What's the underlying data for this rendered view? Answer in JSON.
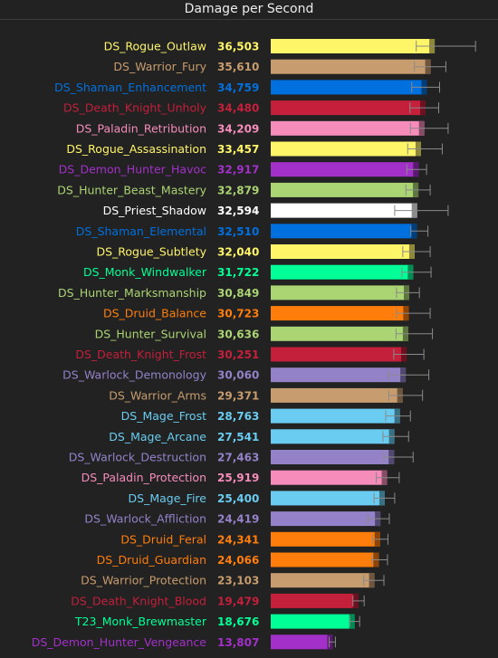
{
  "chart_data": {
    "type": "bar",
    "orientation": "horizontal",
    "title": "Damage per Second",
    "xlabel": "",
    "ylabel": "",
    "xlim": [
      0,
      37000
    ],
    "grid": false,
    "legend": "none",
    "categories": [
      "DS_Rogue_Outlaw",
      "DS_Warrior_Fury",
      "DS_Shaman_Enhancement",
      "DS_Death_Knight_Unholy",
      "DS_Paladin_Retribution",
      "DS_Rogue_Assassination",
      "DS_Demon_Hunter_Havoc",
      "DS_Hunter_Beast_Mastery",
      "DS_Priest_Shadow",
      "DS_Shaman_Elemental",
      "DS_Rogue_Subtlety",
      "DS_Monk_Windwalker",
      "DS_Hunter_Marksmanship",
      "DS_Druid_Balance",
      "DS_Hunter_Survival",
      "DS_Death_Knight_Frost",
      "DS_Warlock_Demonology",
      "DS_Warrior_Arms",
      "DS_Mage_Frost",
      "DS_Mage_Arcane",
      "DS_Warlock_Destruction",
      "DS_Paladin_Protection",
      "DS_Mage_Fire",
      "DS_Warlock_Affliction",
      "DS_Druid_Feral",
      "DS_Druid_Guardian",
      "DS_Warrior_Protection",
      "DS_Death_Knight_Blood",
      "T23_Monk_Brewmaster",
      "DS_Demon_Hunter_Vengeance"
    ],
    "values": [
      36503,
      35610,
      34759,
      34480,
      34209,
      33457,
      32917,
      32879,
      32594,
      32510,
      32040,
      31722,
      30849,
      30723,
      30636,
      30251,
      30060,
      29371,
      28763,
      27541,
      27463,
      25919,
      25400,
      24419,
      24341,
      24066,
      23103,
      19479,
      18676,
      13807
    ],
    "value_labels": [
      "36,503",
      "35,610",
      "34,759",
      "34,480",
      "34,209",
      "33,457",
      "32,917",
      "32,879",
      "32,594",
      "32,510",
      "32,040",
      "31,722",
      "30,849",
      "30,723",
      "30,636",
      "30,251",
      "30,060",
      "29,371",
      "28,763",
      "27,541",
      "27,463",
      "25,919",
      "25,400",
      "24,419",
      "24,341",
      "24,066",
      "23,103",
      "19,479",
      "18,676",
      "13,807"
    ],
    "range_low": [
      32400,
      32000,
      31400,
      31000,
      31100,
      30500,
      30300,
      30100,
      27600,
      31200,
      29400,
      29200,
      28000,
      28000,
      27900,
      27400,
      26200,
      26300,
      25600,
      25000,
      25200,
      23500,
      23000,
      21600,
      22700,
      22500,
      20700,
      18300,
      17600,
      13000
    ],
    "range_high": [
      45600,
      39000,
      37600,
      37400,
      39500,
      38200,
      34700,
      35500,
      39500,
      35000,
      35500,
      35700,
      33100,
      35500,
      36000,
      34100,
      35200,
      33800,
      31100,
      30700,
      31700,
      28600,
      27600,
      26400,
      26100,
      26000,
      25200,
      20800,
      19800,
      14400
    ],
    "colors": [
      "#fff569",
      "#c79c6e",
      "#0070de",
      "#c41f3b",
      "#f58cba",
      "#fff569",
      "#a330c9",
      "#abd473",
      "#ffffff",
      "#0070de",
      "#fff569",
      "#00ff96",
      "#abd473",
      "#ff7d0a",
      "#abd473",
      "#c41f3b",
      "#9482c9",
      "#c79c6e",
      "#69ccf0",
      "#69ccf0",
      "#9482c9",
      "#f58cba",
      "#69ccf0",
      "#9482c9",
      "#ff7d0a",
      "#ff7d0a",
      "#c79c6e",
      "#c41f3b",
      "#00ff96",
      "#a330c9"
    ],
    "label_colors": [
      "#fff569",
      "#c79c6e",
      "#0070de",
      "#c41f3b",
      "#f58cba",
      "#fff569",
      "#a330c9",
      "#abd473",
      "#ffffff",
      "#0070de",
      "#fff569",
      "#00ff96",
      "#abd473",
      "#ff7d0a",
      "#abd473",
      "#c41f3b",
      "#9482c9",
      "#c79c6e",
      "#69ccf0",
      "#69ccf0",
      "#9482c9",
      "#f58cba",
      "#69ccf0",
      "#9482c9",
      "#ff7d0a",
      "#ff7d0a",
      "#c79c6e",
      "#c41f3b",
      "#00ff96",
      "#a330c9"
    ]
  },
  "colors": {
    "background": "#222222",
    "title": "#ececec",
    "whisker": "#8a8a8a"
  }
}
